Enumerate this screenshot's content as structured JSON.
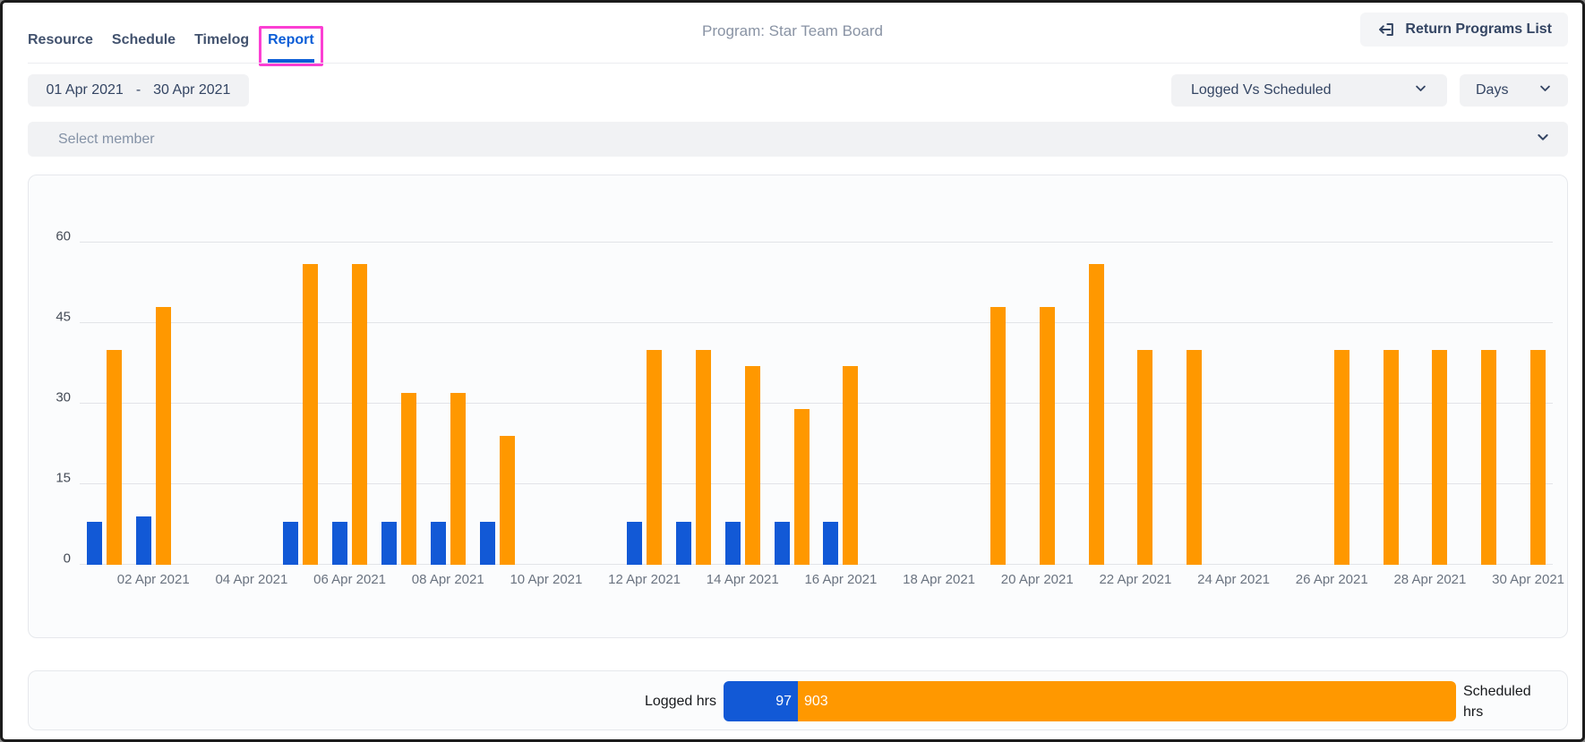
{
  "header": {
    "tabs": [
      {
        "label": "Resource",
        "active": false
      },
      {
        "label": "Schedule",
        "active": false
      },
      {
        "label": "Timelog",
        "active": false
      },
      {
        "label": "Report",
        "active": true
      }
    ],
    "program_title": "Program: Star Team Board",
    "return_button_label": "Return Programs List"
  },
  "filters": {
    "date_start": "01 Apr 2021",
    "date_separator": "-",
    "date_end": "30 Apr 2021",
    "metric_select": "Logged Vs Scheduled",
    "period_select": "Days",
    "member_placeholder": "Select member"
  },
  "chart_data": {
    "type": "bar",
    "ylim": [
      0,
      60
    ],
    "y_ticks": [
      0,
      15,
      30,
      45,
      60
    ],
    "grid": true,
    "x_ticks": [
      {
        "day": 2,
        "label": "02 Apr 2021"
      },
      {
        "day": 4,
        "label": "04 Apr 2021"
      },
      {
        "day": 6,
        "label": "06 Apr 2021"
      },
      {
        "day": 8,
        "label": "08 Apr 2021"
      },
      {
        "day": 10,
        "label": "10 Apr 2021"
      },
      {
        "day": 12,
        "label": "12 Apr 2021"
      },
      {
        "day": 14,
        "label": "14 Apr 2021"
      },
      {
        "day": 16,
        "label": "16 Apr 2021"
      },
      {
        "day": 18,
        "label": "18 Apr 2021"
      },
      {
        "day": 20,
        "label": "20 Apr 2021"
      },
      {
        "day": 22,
        "label": "22 Apr 2021"
      },
      {
        "day": 24,
        "label": "24 Apr 2021"
      },
      {
        "day": 26,
        "label": "26 Apr 2021"
      },
      {
        "day": 28,
        "label": "28 Apr 2021"
      },
      {
        "day": 30,
        "label": "30 Apr 2021"
      }
    ],
    "series": [
      {
        "name": "Logged hrs",
        "color": "#1259d6"
      },
      {
        "name": "Scheduled hrs",
        "color": "#ff9800"
      }
    ],
    "days": [
      {
        "day": 1,
        "logged": 8,
        "scheduled": 40
      },
      {
        "day": 2,
        "logged": 9,
        "scheduled": 48
      },
      {
        "day": 3,
        "logged": 0,
        "scheduled": 0
      },
      {
        "day": 4,
        "logged": 0,
        "scheduled": 0
      },
      {
        "day": 5,
        "logged": 8,
        "scheduled": 56
      },
      {
        "day": 6,
        "logged": 8,
        "scheduled": 56
      },
      {
        "day": 7,
        "logged": 8,
        "scheduled": 32
      },
      {
        "day": 8,
        "logged": 8,
        "scheduled": 32
      },
      {
        "day": 9,
        "logged": 8,
        "scheduled": 24
      },
      {
        "day": 10,
        "logged": 0,
        "scheduled": 0
      },
      {
        "day": 11,
        "logged": 0,
        "scheduled": 0
      },
      {
        "day": 12,
        "logged": 8,
        "scheduled": 40
      },
      {
        "day": 13,
        "logged": 8,
        "scheduled": 40
      },
      {
        "day": 14,
        "logged": 8,
        "scheduled": 37
      },
      {
        "day": 15,
        "logged": 8,
        "scheduled": 29
      },
      {
        "day": 16,
        "logged": 8,
        "scheduled": 37
      },
      {
        "day": 17,
        "logged": 0,
        "scheduled": 0
      },
      {
        "day": 18,
        "logged": 0,
        "scheduled": 0
      },
      {
        "day": 19,
        "logged": 0,
        "scheduled": 48
      },
      {
        "day": 20,
        "logged": 0,
        "scheduled": 48
      },
      {
        "day": 21,
        "logged": 0,
        "scheduled": 56
      },
      {
        "day": 22,
        "logged": 0,
        "scheduled": 40
      },
      {
        "day": 23,
        "logged": 0,
        "scheduled": 40
      },
      {
        "day": 24,
        "logged": 0,
        "scheduled": 0
      },
      {
        "day": 25,
        "logged": 0,
        "scheduled": 0
      },
      {
        "day": 26,
        "logged": 0,
        "scheduled": 40
      },
      {
        "day": 27,
        "logged": 0,
        "scheduled": 40
      },
      {
        "day": 28,
        "logged": 0,
        "scheduled": 40
      },
      {
        "day": 29,
        "logged": 0,
        "scheduled": 40
      },
      {
        "day": 30,
        "logged": 0,
        "scheduled": 40
      }
    ]
  },
  "summary": {
    "logged_label": "Logged hrs",
    "logged_total": "97",
    "scheduled_total": "903",
    "scheduled_label": "Scheduled hrs"
  },
  "colors": {
    "logged_blue": "#1259d6",
    "scheduled_orange": "#ff9800",
    "active_tab_blue": "#0b5dd7",
    "annotation_pink": "#fb3fd3"
  }
}
